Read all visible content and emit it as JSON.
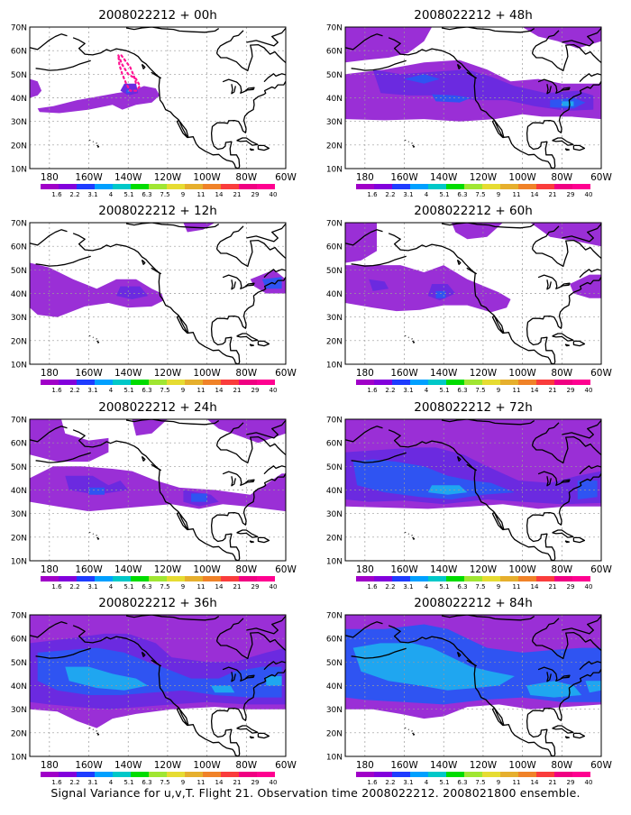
{
  "figure": {
    "caption": "Signal Variance for u,v,T. Flight 21. Observation time 2008022212. 2008021800 ensemble."
  },
  "axes": {
    "lat_labels": [
      "70N",
      "60N",
      "50N",
      "40N",
      "30N",
      "20N",
      "10N"
    ],
    "lon_labels": [
      "180",
      "160W",
      "140W",
      "120W",
      "100W",
      "80W",
      "60W"
    ]
  },
  "colorbar": {
    "levels": [
      "1.6",
      "2.2",
      "3.1",
      "4",
      "5.1",
      "6.3",
      "7.5",
      "9",
      "11",
      "14",
      "21",
      "29",
      "40"
    ],
    "colors": [
      "#a000c8",
      "#8200dc",
      "#1e3cff",
      "#00a0ff",
      "#00c8c8",
      "#00dc00",
      "#a0e632",
      "#e6dc32",
      "#e6af2d",
      "#f08228",
      "#fa3c3c",
      "#f00082",
      "#ff0090"
    ]
  },
  "colors": {
    "level_1": "#9a2fd6",
    "level_2": "#6b2ae0",
    "level_3": "#2f54f2",
    "level_4": "#1fa6f0",
    "land_outline": "#000000",
    "grid": "#9a9a9a",
    "observation_track": "#ff1493"
  },
  "panels": [
    {
      "title": "2008022212 + 00h"
    },
    {
      "title": "2008022212 + 48h"
    },
    {
      "title": "2008022212 + 12h"
    },
    {
      "title": "2008022212 + 60h"
    },
    {
      "title": "2008022212 + 24h"
    },
    {
      "title": "2008022212 + 72h"
    },
    {
      "title": "2008022212 + 36h"
    },
    {
      "title": "2008022212 + 84h"
    }
  ]
}
